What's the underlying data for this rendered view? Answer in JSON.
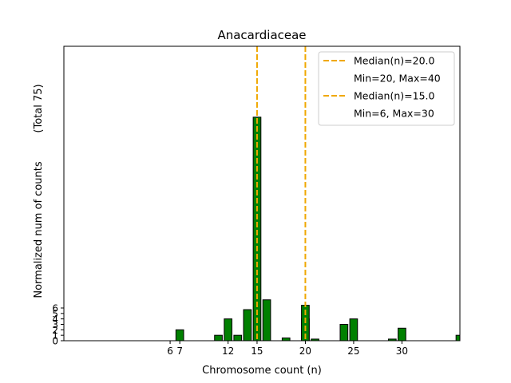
{
  "chart_data": {
    "type": "bar",
    "title": "Anacardiaceae",
    "xlabel": "Chromosome count (n)",
    "ylabel_main": "Normalized num of counts",
    "ylabel_total": "(Total 75)",
    "xlim": [
      -5,
      36
    ],
    "ylim": [
      0,
      54
    ],
    "xticks": [
      6,
      7,
      12,
      15,
      20,
      25,
      30
    ],
    "yticks": [
      0,
      1,
      2,
      3,
      4,
      5,
      6
    ],
    "series": [
      {
        "name": "Min=20, Max=40",
        "color": "#008000",
        "x": [
          7,
          11,
          12,
          13,
          14,
          15,
          16,
          18,
          20,
          21,
          24,
          25,
          29,
          30,
          36
        ],
        "values": [
          2,
          1,
          4,
          1,
          5.7,
          41,
          7.5,
          0.5,
          4,
          0.3,
          3,
          4,
          0.3,
          2.3,
          1
        ]
      },
      {
        "name": "Min=6, Max=30",
        "color": "#008000",
        "x": [
          20
        ],
        "values": [
          6.5
        ]
      }
    ],
    "median_lines": [
      {
        "label": "Median(n)=20.0",
        "x": 20,
        "color": "#f0a800"
      },
      {
        "label": "Median(n)=15.0",
        "x": 15,
        "color": "#f0a800"
      }
    ],
    "legend": [
      {
        "kind": "line",
        "label": "Median(n)=20.0",
        "color": "#f0a800"
      },
      {
        "kind": "blank",
        "label": "Min=20, Max=40"
      },
      {
        "kind": "line",
        "label": "Median(n)=15.0",
        "color": "#f0a800"
      },
      {
        "kind": "blank",
        "label": "Min=6, Max=30"
      }
    ],
    "legend_position": "top-right"
  }
}
